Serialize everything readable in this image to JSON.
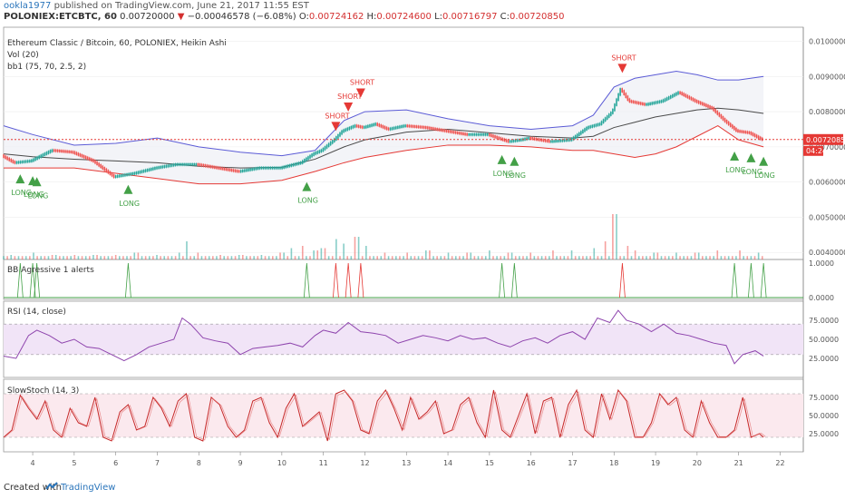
{
  "header": {
    "user": "ookla1977",
    "published": "published on TradingView.com, June 21, 2017 11:55 EST",
    "symbol": "POLONIEX:ETCBTC, 60",
    "price": "0.00720000",
    "change_arrow": "▼",
    "change": "−0.00046578 (−6.08%)",
    "ohlc": {
      "o_label": "O:",
      "o": "0.00724162",
      "h_label": "H:",
      "h": "0.00724600",
      "l_label": "L:",
      "l": "0.00716797",
      "c_label": "C:",
      "c": "0.00720850"
    }
  },
  "panes": {
    "main": {
      "title": "Ethereum Classic / Bitcoin, 60, POLONIEX, Heikin Ashi",
      "vol_label": "Vol (20)",
      "bb_label": "bb1 (75, 70, 2.5, 2)",
      "y_ticks": [
        "0.01000000",
        "0.00900000",
        "0.00800000",
        "0.00700000",
        "0.00600000",
        "0.00500000",
        "0.00400000"
      ],
      "last_price_label": "0.00720850",
      "countdown_label": "04:24"
    },
    "alerts": {
      "title": "BB Agressive 1 alerts",
      "y_ticks": [
        "1.0000",
        "0.0000"
      ]
    },
    "rsi": {
      "title": "RSI (14, close)",
      "y_ticks": [
        "75.0000",
        "50.0000",
        "25.0000"
      ]
    },
    "stoch": {
      "title": "SlowStoch (14, 3)",
      "y_ticks": [
        "75.0000",
        "50.0000",
        "25.0000"
      ]
    }
  },
  "x_ticks": [
    "4",
    "5",
    "6",
    "7",
    "8",
    "9",
    "10",
    "11",
    "12",
    "13",
    "14",
    "15",
    "16",
    "17",
    "18",
    "19",
    "20",
    "21",
    "22"
  ],
  "footer": {
    "created": "Created with",
    "brand": "TradingView"
  },
  "colors": {
    "bb_upper": "#5b5bd6",
    "bb_lower": "#e53935",
    "bb_mid": "#4a4a4a",
    "candle_up": "#26a69a",
    "candle_down": "#ef5350",
    "rsi_line": "#8e44ad",
    "stoch_k": "#c62828",
    "last_price": "#e53935",
    "long_signal": "#43a047",
    "short_signal": "#e53935"
  },
  "chart_data": [
    {
      "type": "line",
      "title": "Ethereum Classic / Bitcoin, 60, POLONIEX, Heikin Ashi",
      "xlabel": "",
      "ylabel": "",
      "ylim": [
        0.0038,
        0.0104
      ],
      "x_ticks": [
        "4",
        "5",
        "6",
        "7",
        "8",
        "9",
        "10",
        "11",
        "12",
        "13",
        "14",
        "15",
        "16",
        "17",
        "18",
        "19",
        "20",
        "21",
        "22"
      ],
      "series": [
        {
          "name": "",
          "role": "price",
          "x": [
            3.3,
            3.6,
            4.0,
            4.5,
            5.0,
            5.5,
            6.0,
            6.5,
            7.0,
            7.5,
            8.0,
            8.5,
            9.0,
            9.5,
            10.0,
            10.5,
            10.8,
            11.0,
            11.3,
            11.5,
            11.8,
            12.0,
            12.3,
            12.6,
            13.0,
            13.5,
            14.0,
            14.5,
            15.0,
            15.5,
            15.8,
            16.0,
            16.5,
            17.0,
            17.4,
            17.7,
            18.0,
            18.2,
            18.4,
            18.8,
            19.2,
            19.6,
            20.0,
            20.4,
            20.7,
            21.0,
            21.3,
            21.6
          ],
          "y": [
            0.00675,
            0.00655,
            0.0066,
            0.0069,
            0.00685,
            0.0066,
            0.00615,
            0.00625,
            0.0064,
            0.0065,
            0.0065,
            0.0064,
            0.0063,
            0.0064,
            0.0064,
            0.00655,
            0.0068,
            0.0069,
            0.0072,
            0.00745,
            0.0076,
            0.00755,
            0.00765,
            0.0075,
            0.0076,
            0.00755,
            0.00745,
            0.00735,
            0.00735,
            0.00715,
            0.0072,
            0.00725,
            0.00715,
            0.0072,
            0.00755,
            0.00765,
            0.008,
            0.00865,
            0.0083,
            0.0082,
            0.0083,
            0.00855,
            0.0083,
            0.0081,
            0.00775,
            0.00745,
            0.0074,
            0.00721
          ]
        },
        {
          "name": "",
          "role": "bb_upper",
          "x": [
            3.3,
            4.0,
            5.0,
            6.0,
            7.0,
            8.0,
            9.0,
            10.0,
            10.8,
            11.5,
            12.0,
            13.0,
            14.0,
            15.0,
            16.0,
            17.0,
            17.5,
            18.0,
            18.5,
            19.0,
            19.5,
            20.0,
            20.5,
            21.0,
            21.6
          ],
          "y": [
            0.0076,
            0.00735,
            0.00705,
            0.0071,
            0.00725,
            0.007,
            0.00685,
            0.00675,
            0.0069,
            0.00775,
            0.008,
            0.00805,
            0.0078,
            0.0076,
            0.0075,
            0.0076,
            0.0079,
            0.0087,
            0.00895,
            0.00905,
            0.00915,
            0.00905,
            0.0089,
            0.0089,
            0.009
          ]
        },
        {
          "name": "",
          "role": "bb_mid",
          "x": [
            3.3,
            4.0,
            5.0,
            6.0,
            7.0,
            8.0,
            9.0,
            10.0,
            10.8,
            11.5,
            12.0,
            13.0,
            14.0,
            15.0,
            16.0,
            17.0,
            17.5,
            18.0,
            18.5,
            19.0,
            19.5,
            20.0,
            20.5,
            21.0,
            21.6
          ],
          "y": [
            0.0068,
            0.00672,
            0.00665,
            0.0066,
            0.00655,
            0.00645,
            0.0064,
            0.00642,
            0.00665,
            0.007,
            0.0072,
            0.00742,
            0.0075,
            0.0074,
            0.0073,
            0.00725,
            0.0073,
            0.00755,
            0.0077,
            0.00785,
            0.00795,
            0.00805,
            0.0081,
            0.00805,
            0.00795
          ]
        },
        {
          "name": "",
          "role": "bb_lower",
          "x": [
            3.3,
            4.0,
            5.0,
            6.0,
            7.0,
            8.0,
            9.0,
            10.0,
            10.8,
            11.5,
            12.0,
            13.0,
            14.0,
            15.0,
            16.0,
            17.0,
            17.5,
            18.0,
            18.5,
            19.0,
            19.5,
            20.0,
            20.5,
            21.0,
            21.6
          ],
          "y": [
            0.0064,
            0.0064,
            0.0064,
            0.00625,
            0.0061,
            0.00595,
            0.00595,
            0.00605,
            0.0063,
            0.00655,
            0.0067,
            0.0069,
            0.00705,
            0.00705,
            0.007,
            0.0069,
            0.0069,
            0.0068,
            0.0067,
            0.0068,
            0.007,
            0.0073,
            0.0076,
            0.0072,
            0.007
          ]
        }
      ],
      "last_price": 0.0072085,
      "signals": [
        {
          "label": "LONG",
          "x": 3.7,
          "y": 0.0064
        },
        {
          "label": "LONG",
          "x": 4.0,
          "y": 0.00635
        },
        {
          "label": "LONG",
          "x": 4.1,
          "y": 0.00632
        },
        {
          "label": "LONG",
          "x": 6.3,
          "y": 0.0061
        },
        {
          "label": "LONG",
          "x": 10.6,
          "y": 0.00618
        },
        {
          "label": "SHORT",
          "x": 11.3,
          "y": 0.0074
        },
        {
          "label": "SHORT",
          "x": 11.6,
          "y": 0.00795
        },
        {
          "label": "SHORT",
          "x": 11.9,
          "y": 0.00835
        },
        {
          "label": "LONG",
          "x": 15.3,
          "y": 0.00695
        },
        {
          "label": "LONG",
          "x": 15.6,
          "y": 0.0069
        },
        {
          "label": "SHORT",
          "x": 18.2,
          "y": 0.00905
        },
        {
          "label": "LONG",
          "x": 20.9,
          "y": 0.00705
        },
        {
          "label": "LONG",
          "x": 21.3,
          "y": 0.007
        },
        {
          "label": "LONG",
          "x": 21.6,
          "y": 0.0069
        }
      ]
    },
    {
      "type": "bar",
      "title": "Vol (20)",
      "x": [
        3.5,
        4.0,
        4.5,
        5.0,
        5.5,
        6.0,
        6.5,
        7.0,
        7.5,
        7.7,
        8.0,
        8.5,
        9.0,
        9.5,
        10.0,
        10.2,
        10.5,
        10.8,
        11.0,
        11.3,
        11.5,
        11.8,
        12.0,
        12.5,
        13.0,
        13.5,
        14.0,
        14.5,
        15.0,
        15.5,
        16.0,
        16.5,
        17.0,
        17.5,
        17.8,
        18.0,
        18.3,
        18.5,
        19.0,
        19.5,
        20.0,
        20.5,
        21.0,
        21.5
      ],
      "values": [
        2,
        3,
        2,
        2,
        2,
        2,
        3,
        2,
        3,
        8,
        3,
        2,
        2,
        2,
        3,
        5,
        6,
        4,
        5,
        9,
        7,
        10,
        6,
        3,
        3,
        4,
        3,
        3,
        4,
        3,
        3,
        4,
        4,
        5,
        8,
        20,
        6,
        4,
        3,
        3,
        3,
        4,
        4,
        3
      ],
      "ylim": [
        0,
        22
      ]
    },
    {
      "type": "line",
      "title": "BB Agressive 1 alerts",
      "ylim": [
        0,
        1
      ],
      "long_spikes": [
        3.7,
        4.0,
        4.1,
        6.3,
        10.6,
        15.3,
        15.6,
        20.9,
        21.3,
        21.6
      ],
      "short_spikes": [
        11.3,
        11.6,
        11.9,
        18.2
      ]
    },
    {
      "type": "line",
      "title": "RSI (14, close)",
      "ylim": [
        0,
        100
      ],
      "x": [
        3.3,
        3.6,
        3.9,
        4.1,
        4.4,
        4.7,
        5.0,
        5.3,
        5.6,
        5.9,
        6.2,
        6.5,
        6.8,
        7.1,
        7.4,
        7.6,
        7.8,
        8.1,
        8.4,
        8.7,
        9.0,
        9.3,
        9.6,
        9.9,
        10.2,
        10.5,
        10.8,
        11.0,
        11.3,
        11.6,
        11.9,
        12.2,
        12.5,
        12.8,
        13.1,
        13.4,
        13.7,
        14.0,
        14.3,
        14.6,
        14.9,
        15.2,
        15.5,
        15.8,
        16.1,
        16.4,
        16.7,
        17.0,
        17.3,
        17.6,
        17.9,
        18.1,
        18.3,
        18.6,
        18.9,
        19.2,
        19.5,
        19.8,
        20.1,
        20.4,
        20.7,
        20.9,
        21.1,
        21.4,
        21.6
      ],
      "values": [
        28,
        25,
        55,
        62,
        55,
        45,
        50,
        40,
        38,
        30,
        22,
        30,
        40,
        45,
        50,
        78,
        70,
        52,
        48,
        45,
        30,
        38,
        40,
        42,
        45,
        40,
        55,
        62,
        58,
        72,
        60,
        58,
        55,
        45,
        50,
        55,
        52,
        48,
        55,
        50,
        52,
        45,
        40,
        48,
        52,
        45,
        55,
        60,
        50,
        78,
        72,
        88,
        75,
        70,
        60,
        70,
        58,
        55,
        50,
        45,
        42,
        18,
        30,
        35,
        28
      ],
      "bands": [
        30,
        70
      ]
    },
    {
      "type": "line",
      "title": "SlowStoch (14, 3)",
      "ylim": [
        0,
        100
      ],
      "x": [
        3.3,
        3.5,
        3.7,
        3.9,
        4.1,
        4.3,
        4.5,
        4.7,
        4.9,
        5.1,
        5.3,
        5.5,
        5.7,
        5.9,
        6.1,
        6.3,
        6.5,
        6.7,
        6.9,
        7.1,
        7.3,
        7.5,
        7.7,
        7.9,
        8.1,
        8.3,
        8.5,
        8.7,
        8.9,
        9.1,
        9.3,
        9.5,
        9.7,
        9.9,
        10.1,
        10.3,
        10.5,
        10.7,
        10.9,
        11.1,
        11.3,
        11.5,
        11.7,
        11.9,
        12.1,
        12.3,
        12.5,
        12.7,
        12.9,
        13.1,
        13.3,
        13.5,
        13.7,
        13.9,
        14.1,
        14.3,
        14.5,
        14.7,
        14.9,
        15.1,
        15.3,
        15.5,
        15.7,
        15.9,
        16.1,
        16.3,
        16.5,
        16.7,
        16.9,
        17.1,
        17.3,
        17.5,
        17.7,
        17.9,
        18.1,
        18.3,
        18.5,
        18.7,
        18.9,
        19.1,
        19.3,
        19.5,
        19.7,
        19.9,
        20.1,
        20.3,
        20.5,
        20.7,
        20.9,
        21.1,
        21.3,
        21.5,
        21.6
      ],
      "values": [
        20,
        30,
        78,
        60,
        45,
        70,
        30,
        20,
        60,
        40,
        35,
        75,
        20,
        15,
        55,
        65,
        30,
        35,
        75,
        60,
        35,
        70,
        80,
        20,
        15,
        75,
        65,
        35,
        20,
        30,
        70,
        75,
        40,
        20,
        60,
        80,
        35,
        45,
        55,
        15,
        80,
        85,
        70,
        30,
        25,
        70,
        85,
        60,
        30,
        75,
        45,
        55,
        70,
        25,
        30,
        65,
        75,
        40,
        20,
        85,
        30,
        20,
        50,
        80,
        25,
        70,
        75,
        20,
        65,
        85,
        30,
        20,
        80,
        45,
        85,
        70,
        20,
        20,
        40,
        80,
        65,
        75,
        30,
        20,
        70,
        40,
        20,
        20,
        30,
        75,
        20,
        25,
        20
      ],
      "bands": [
        20,
        80
      ]
    }
  ]
}
